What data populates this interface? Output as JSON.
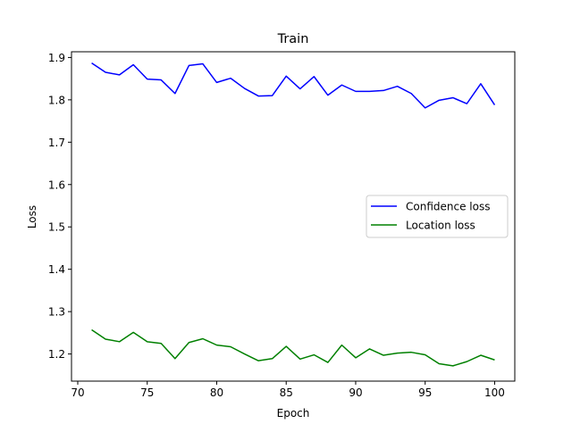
{
  "chart_data": {
    "type": "line",
    "title": "Train",
    "xlabel": "Epoch",
    "ylabel": "Loss",
    "xlim": [
      69.55,
      101.45
    ],
    "ylim": [
      1.1359,
      1.9135
    ],
    "xticks": [
      70,
      75,
      80,
      85,
      90,
      95,
      100
    ],
    "yticks": [
      1.2,
      1.3,
      1.4,
      1.5,
      1.6,
      1.7,
      1.8,
      1.9
    ],
    "xtick_labels": [
      "70",
      "75",
      "80",
      "85",
      "90",
      "95",
      "100"
    ],
    "ytick_labels": [
      "1.2",
      "1.3",
      "1.4",
      "1.5",
      "1.6",
      "1.7",
      "1.8",
      "1.9"
    ],
    "grid": false,
    "legend_position": "center-right",
    "x": [
      71,
      72,
      73,
      74,
      75,
      76,
      77,
      78,
      79,
      80,
      81,
      82,
      83,
      84,
      85,
      86,
      87,
      88,
      89,
      90,
      91,
      92,
      93,
      94,
      95,
      96,
      97,
      98,
      99,
      100
    ],
    "series": [
      {
        "name": "Confidence loss",
        "color": "#0000ff",
        "values": [
          1.887,
          1.865,
          1.859,
          1.883,
          1.849,
          1.847,
          1.815,
          1.881,
          1.885,
          1.841,
          1.851,
          1.827,
          1.809,
          1.81,
          1.856,
          1.826,
          1.855,
          1.811,
          1.835,
          1.82,
          1.82,
          1.822,
          1.832,
          1.815,
          1.781,
          1.799,
          1.805,
          1.791,
          1.838,
          1.788
        ]
      },
      {
        "name": "Location loss",
        "color": "#008000",
        "values": [
          1.257,
          1.235,
          1.229,
          1.251,
          1.229,
          1.225,
          1.189,
          1.227,
          1.236,
          1.221,
          1.217,
          1.2,
          1.184,
          1.189,
          1.218,
          1.188,
          1.198,
          1.18,
          1.221,
          1.191,
          1.212,
          1.197,
          1.202,
          1.204,
          1.198,
          1.177,
          1.172,
          1.182,
          1.197,
          1.186
        ]
      }
    ]
  }
}
